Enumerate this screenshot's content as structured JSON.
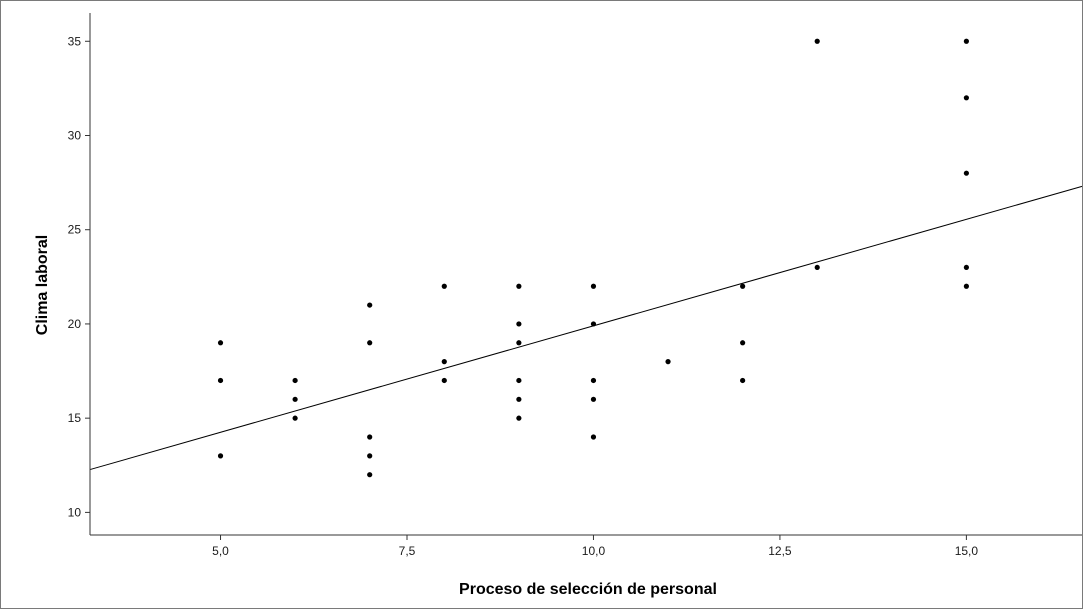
{
  "chart_data": {
    "type": "scatter",
    "xlabel": "Proceso de selección de personal",
    "ylabel": "Clima laboral",
    "xlim": [
      3.25,
      16.55
    ],
    "ylim": [
      8.8,
      36.5
    ],
    "x_ticks": [
      {
        "value": 5.0,
        "label": "5,0"
      },
      {
        "value": 7.5,
        "label": "7,5"
      },
      {
        "value": 10.0,
        "label": "10,0"
      },
      {
        "value": 12.5,
        "label": "12,5"
      },
      {
        "value": 15.0,
        "label": "15,0"
      }
    ],
    "y_ticks": [
      {
        "value": 10,
        "label": "10"
      },
      {
        "value": 15,
        "label": "15"
      },
      {
        "value": 20,
        "label": "20"
      },
      {
        "value": 25,
        "label": "25"
      },
      {
        "value": 30,
        "label": "30"
      },
      {
        "value": 35,
        "label": "35"
      }
    ],
    "grid": false,
    "points": [
      {
        "x": 5,
        "y": 19
      },
      {
        "x": 5,
        "y": 17
      },
      {
        "x": 5,
        "y": 13
      },
      {
        "x": 6,
        "y": 17
      },
      {
        "x": 6,
        "y": 16
      },
      {
        "x": 6,
        "y": 15
      },
      {
        "x": 7,
        "y": 21
      },
      {
        "x": 7,
        "y": 19
      },
      {
        "x": 7,
        "y": 14
      },
      {
        "x": 7,
        "y": 13
      },
      {
        "x": 7,
        "y": 12
      },
      {
        "x": 8,
        "y": 22
      },
      {
        "x": 8,
        "y": 18
      },
      {
        "x": 8,
        "y": 17
      },
      {
        "x": 9,
        "y": 22
      },
      {
        "x": 9,
        "y": 20
      },
      {
        "x": 9,
        "y": 19
      },
      {
        "x": 9,
        "y": 17
      },
      {
        "x": 9,
        "y": 16
      },
      {
        "x": 9,
        "y": 15
      },
      {
        "x": 10,
        "y": 22
      },
      {
        "x": 10,
        "y": 20
      },
      {
        "x": 10,
        "y": 17
      },
      {
        "x": 10,
        "y": 16
      },
      {
        "x": 10,
        "y": 14
      },
      {
        "x": 11,
        "y": 18
      },
      {
        "x": 12,
        "y": 22
      },
      {
        "x": 12,
        "y": 19
      },
      {
        "x": 12,
        "y": 17
      },
      {
        "x": 13,
        "y": 35
      },
      {
        "x": 13,
        "y": 23
      },
      {
        "x": 15,
        "y": 35
      },
      {
        "x": 15,
        "y": 32
      },
      {
        "x": 15,
        "y": 28
      },
      {
        "x": 15,
        "y": 23
      },
      {
        "x": 15,
        "y": 22
      }
    ],
    "fit_line": {
      "intercept": 8.6,
      "slope": 1.13
    },
    "colors": {
      "points": "#000000",
      "line": "#000000",
      "axes": "#333333"
    }
  }
}
